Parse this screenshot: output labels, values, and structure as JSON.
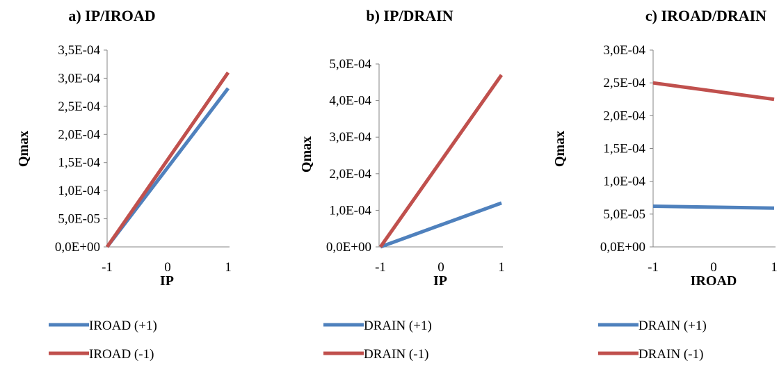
{
  "chart_data": [
    {
      "type": "line",
      "title": "a) IP/IROAD",
      "xlabel": "IP",
      "ylabel": "Qmax",
      "x": [
        -1,
        0,
        1
      ],
      "x_tick_labels": [
        "-1",
        "0",
        "1"
      ],
      "ylim": [
        0,
        0.00035
      ],
      "y_tick_labels": [
        "0,0E+00",
        "5,0E-05",
        "1,0E-04",
        "1,5E-04",
        "2,0E-04",
        "2,5E-04",
        "3,0E-04",
        "3,5E-04"
      ],
      "grid": false,
      "legend_position": "bottom",
      "series": [
        {
          "name": "IROAD (+1)",
          "color": "#4f81bd",
          "values": [
            0.0,
            0.000141,
            0.000282
          ]
        },
        {
          "name": "IROAD (-1)",
          "color": "#c0504d",
          "values": [
            0.0,
            0.000155,
            0.00031
          ]
        }
      ]
    },
    {
      "type": "line",
      "title": "b)  IP/DRAIN",
      "xlabel": "IP",
      "ylabel": "Qmax",
      "x": [
        -1,
        0,
        1
      ],
      "x_tick_labels": [
        "-1",
        "0",
        "1"
      ],
      "ylim": [
        0,
        0.0005
      ],
      "y_tick_labels": [
        "0,0E+00",
        "1,0E-04",
        "2,0E-04",
        "3,0E-04",
        "4,0E-04",
        "5,0E-04"
      ],
      "grid": false,
      "legend_position": "bottom",
      "series": [
        {
          "name": "DRAIN (+1)",
          "color": "#4f81bd",
          "values": [
            0.0,
            6e-05,
            0.00012
          ]
        },
        {
          "name": "DRAIN (-1)",
          "color": "#c0504d",
          "values": [
            0.0,
            0.000235,
            0.00047
          ]
        }
      ]
    },
    {
      "type": "line",
      "title": "c) IROAD/DRAIN",
      "xlabel": "IROAD",
      "ylabel": "Qmax",
      "x": [
        -1,
        0,
        1
      ],
      "x_tick_labels": [
        "-1",
        "0",
        "1"
      ],
      "ylim": [
        0,
        0.0003
      ],
      "y_tick_labels": [
        "0,0E+00",
        "5,0E-05",
        "1,0E-04",
        "1,5E-04",
        "2,0E-04",
        "2,5E-04",
        "3,0E-04"
      ],
      "grid": false,
      "legend_position": "bottom",
      "series": [
        {
          "name": "DRAIN (+1)",
          "color": "#4f81bd",
          "values": [
            6.2e-05,
            6.05e-05,
            5.9e-05
          ]
        },
        {
          "name": "DRAIN (-1)",
          "color": "#c0504d",
          "values": [
            0.00025,
            0.0002375,
            0.000225
          ]
        }
      ]
    }
  ]
}
